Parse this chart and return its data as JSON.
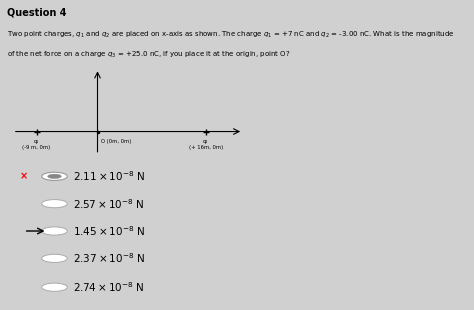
{
  "title": "Question 4",
  "title_bg": "#b8b8b8",
  "bg_color": "#d0d0d0",
  "question_text_line1": "Two point charges, $q_1$ and $q_2$ are placed on x-axis as shown. The charge $q_1$ = +7 nC and $q_2$ = -3.00 nC. What is the magnitude",
  "question_text_line2": "of the net force on a charge $q_3$ = +25.0 nC, if you place it at the origin, point O?",
  "options": [
    {
      "value": "2.11",
      "exp": "-8",
      "unit": "N",
      "selected": true,
      "wrong": true,
      "arrow": false
    },
    {
      "value": "2.57",
      "exp": "-8",
      "unit": "N",
      "selected": false,
      "wrong": false,
      "arrow": false
    },
    {
      "value": "1.45",
      "exp": "-8",
      "unit": "N",
      "selected": false,
      "wrong": false,
      "arrow": true
    },
    {
      "value": "2.37",
      "exp": "-8",
      "unit": "N",
      "selected": false,
      "wrong": false,
      "arrow": false
    },
    {
      "value": "2.74",
      "exp": "-8",
      "unit": "N",
      "selected": false,
      "wrong": false,
      "arrow": false
    }
  ],
  "diagram": {
    "origin_label": "O (0m, 0m)",
    "q1_label": "q₁\n(-9 m, 0m)",
    "q2_label": "q₂\n(+ 16m, 0m)",
    "x_range": [
      -13,
      22
    ],
    "y_range": [
      -4,
      10
    ]
  }
}
